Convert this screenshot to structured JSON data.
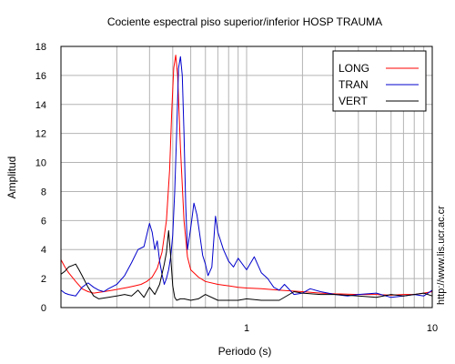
{
  "chart_data": {
    "type": "line",
    "title": "Cociente espectral piso superior/inferior  HOSP TRAUMA",
    "xlabel": "Periodo (s)",
    "ylabel": "Amplitud",
    "x_scale": "log",
    "xlim": [
      0.1,
      10
    ],
    "ylim": [
      0,
      18
    ],
    "x_tick_labels": [
      {
        "value": 1,
        "label": "1"
      },
      {
        "value": 10,
        "label": "10"
      }
    ],
    "y_ticks": [
      0,
      2,
      4,
      6,
      8,
      10,
      12,
      14,
      16,
      18
    ],
    "grid": true,
    "legend_position": "top-right",
    "url_text": "http://www.lis.ucr.ac.cr",
    "series": [
      {
        "name": "LONG",
        "color": "#ff0000",
        "x": [
          0.1,
          0.105,
          0.11,
          0.12,
          0.13,
          0.14,
          0.15,
          0.17,
          0.19,
          0.21,
          0.23,
          0.25,
          0.27,
          0.29,
          0.31,
          0.33,
          0.35,
          0.37,
          0.385,
          0.395,
          0.405,
          0.415,
          0.425,
          0.44,
          0.46,
          0.48,
          0.5,
          0.55,
          0.6,
          0.7,
          0.8,
          0.9,
          1.0,
          1.2,
          1.5,
          2.0,
          2.5,
          3,
          4,
          5,
          6,
          7,
          8,
          9,
          10
        ],
        "y": [
          3.3,
          2.8,
          2.4,
          1.8,
          1.3,
          1.1,
          1.0,
          1.1,
          1.2,
          1.3,
          1.4,
          1.5,
          1.6,
          1.8,
          2.1,
          2.7,
          3.8,
          6.0,
          9.5,
          13.5,
          16.5,
          17.4,
          16.0,
          11.0,
          6.0,
          3.5,
          2.6,
          2.1,
          1.8,
          1.6,
          1.5,
          1.4,
          1.35,
          1.3,
          1.2,
          1.1,
          1.0,
          0.95,
          0.9,
          0.9,
          0.85,
          0.9,
          0.9,
          1.0,
          1.1
        ]
      },
      {
        "name": "TRAN",
        "color": "#0000cc",
        "x": [
          0.1,
          0.105,
          0.11,
          0.12,
          0.13,
          0.14,
          0.15,
          0.16,
          0.17,
          0.18,
          0.2,
          0.22,
          0.24,
          0.26,
          0.28,
          0.3,
          0.31,
          0.32,
          0.33,
          0.34,
          0.35,
          0.36,
          0.37,
          0.38,
          0.39,
          0.4,
          0.41,
          0.42,
          0.43,
          0.44,
          0.45,
          0.46,
          0.47,
          0.48,
          0.5,
          0.52,
          0.54,
          0.56,
          0.58,
          0.6,
          0.62,
          0.65,
          0.68,
          0.7,
          0.75,
          0.8,
          0.85,
          0.9,
          1.0,
          1.1,
          1.2,
          1.3,
          1.4,
          1.5,
          1.6,
          1.8,
          2.0,
          2.2,
          2.5,
          3,
          3.5,
          4,
          5,
          6,
          7,
          8,
          9,
          10
        ],
        "y": [
          1.2,
          1.0,
          0.9,
          0.8,
          1.4,
          1.7,
          1.4,
          1.2,
          1.1,
          1.3,
          1.6,
          2.2,
          3.1,
          4.0,
          4.2,
          5.8,
          5.2,
          4.0,
          4.6,
          3.2,
          2.3,
          1.6,
          2.0,
          2.6,
          3.5,
          5.0,
          8.0,
          12.0,
          16.5,
          17.3,
          16.0,
          12.0,
          7.0,
          4.0,
          5.5,
          7.2,
          6.4,
          5.0,
          3.6,
          3.0,
          2.2,
          2.8,
          6.3,
          5.2,
          4.0,
          3.2,
          2.8,
          3.4,
          2.6,
          3.5,
          2.4,
          2.0,
          1.4,
          1.2,
          1.6,
          0.9,
          1.0,
          1.3,
          1.1,
          0.9,
          0.8,
          0.9,
          1.0,
          0.7,
          0.8,
          0.9,
          0.8,
          1.2
        ]
      },
      {
        "name": "VERT",
        "color": "#000000",
        "x": [
          0.1,
          0.105,
          0.11,
          0.115,
          0.12,
          0.125,
          0.13,
          0.14,
          0.15,
          0.16,
          0.18,
          0.2,
          0.22,
          0.24,
          0.26,
          0.28,
          0.3,
          0.32,
          0.34,
          0.35,
          0.36,
          0.37,
          0.38,
          0.39,
          0.4,
          0.41,
          0.42,
          0.44,
          0.46,
          0.5,
          0.55,
          0.6,
          0.7,
          0.8,
          0.9,
          1.0,
          1.2,
          1.5,
          1.8,
          2.0,
          2.5,
          3,
          4,
          5,
          6,
          7,
          8,
          9,
          10
        ],
        "y": [
          2.3,
          2.5,
          2.8,
          2.9,
          3.0,
          2.6,
          2.2,
          1.4,
          0.8,
          0.6,
          0.7,
          0.8,
          0.9,
          0.8,
          1.2,
          0.7,
          1.4,
          0.9,
          1.6,
          2.3,
          3.0,
          3.8,
          5.3,
          3.5,
          1.5,
          0.7,
          0.5,
          0.6,
          0.6,
          0.5,
          0.6,
          0.9,
          0.5,
          0.5,
          0.5,
          0.6,
          0.5,
          0.5,
          1.1,
          1.0,
          0.9,
          0.9,
          0.8,
          0.7,
          0.9,
          0.8,
          0.9,
          1.0,
          0.8
        ]
      }
    ]
  }
}
